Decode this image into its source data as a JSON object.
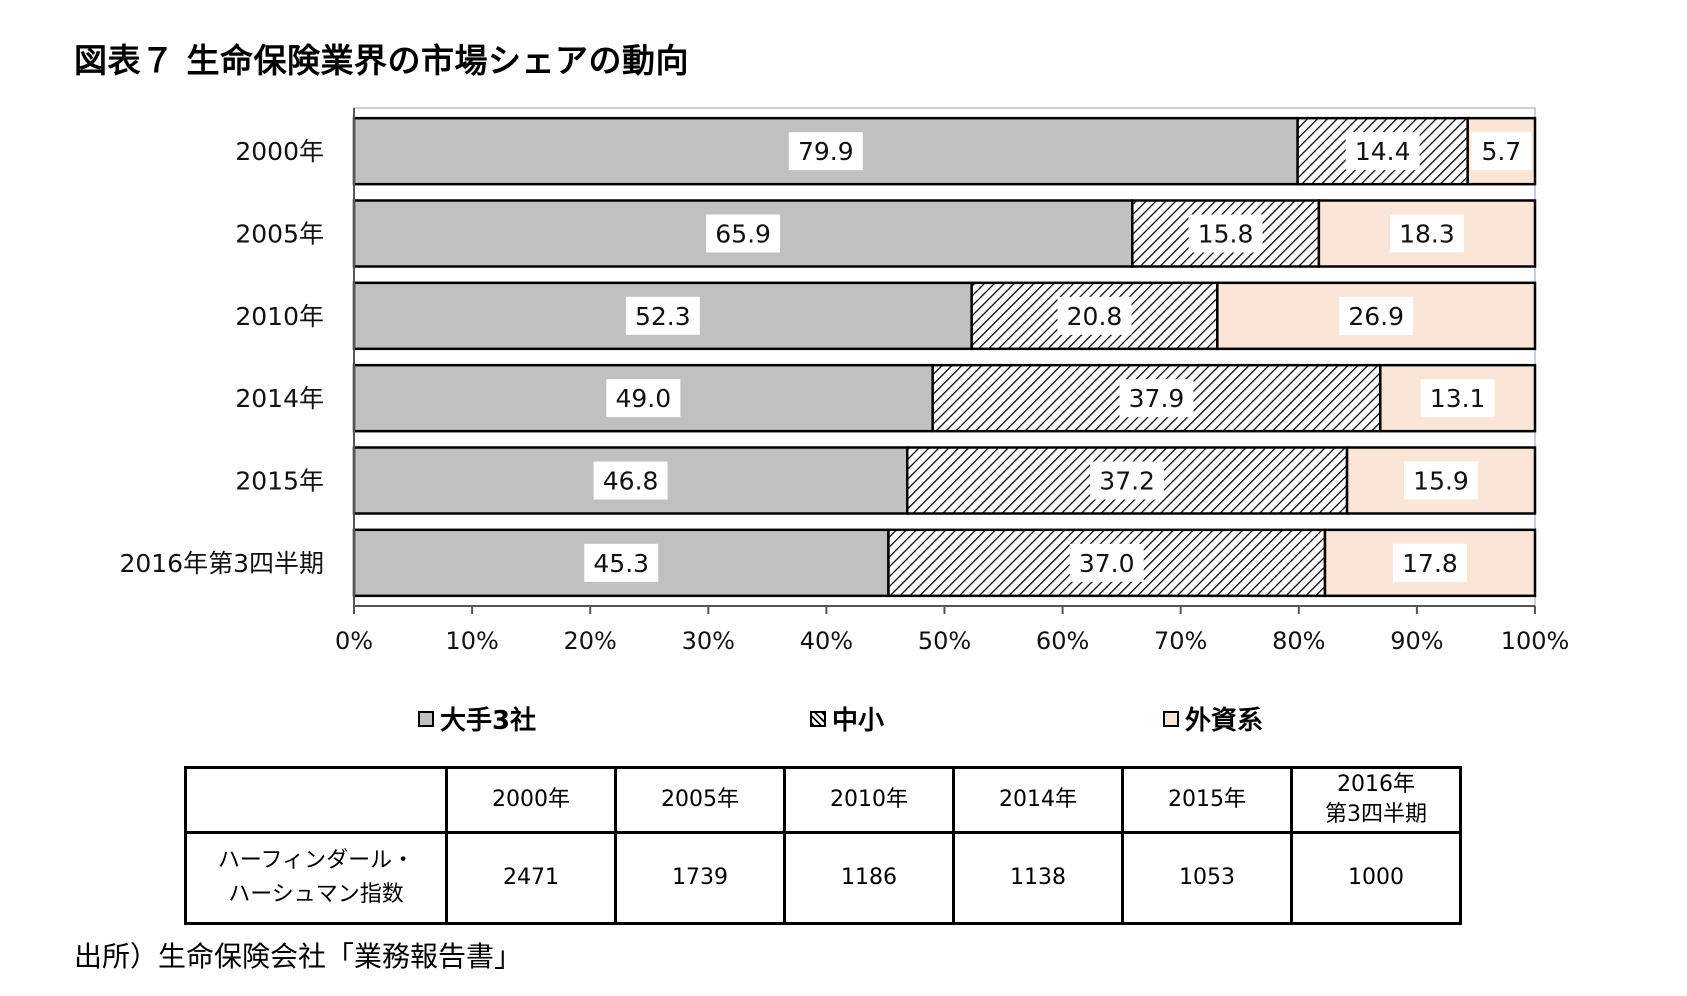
{
  "title": "図表７ 生命保険業界の市場シェアの動向",
  "chart_data": {
    "type": "bar",
    "orientation": "horizontal",
    "stacked": "percent",
    "categories": [
      "2000年",
      "2005年",
      "2010年",
      "2014年",
      "2015年",
      "2016年第3四半期"
    ],
    "series": [
      {
        "name": "大手3社",
        "values": [
          79.9,
          65.9,
          52.3,
          49.0,
          46.8,
          45.3
        ],
        "value_labels": [
          "79.9",
          "65.9",
          "52.3",
          "49.0",
          "46.8",
          "45.3"
        ],
        "color": "#c0c0c0",
        "pattern": "solid"
      },
      {
        "name": "中小",
        "values": [
          14.4,
          15.8,
          20.8,
          37.9,
          37.2,
          37.0
        ],
        "value_labels": [
          "14.4",
          "15.8",
          "20.8",
          "37.9",
          "37.2",
          "37.0"
        ],
        "color": "#ffffff",
        "pattern": "diagonal-hatch"
      },
      {
        "name": "外資系",
        "values": [
          5.7,
          18.3,
          26.9,
          13.1,
          15.9,
          17.8
        ],
        "value_labels": [
          "5.7",
          "18.3",
          "26.9",
          "13.1",
          "15.9",
          "17.8"
        ],
        "color": "#fbe5d6",
        "pattern": "solid"
      }
    ],
    "xlim": [
      0,
      100
    ],
    "xticks": [
      "0%",
      "10%",
      "20%",
      "30%",
      "40%",
      "50%",
      "60%",
      "70%",
      "80%",
      "90%",
      "100%"
    ],
    "legend_position": "bottom",
    "grid": false
  },
  "table": {
    "columns": [
      "2000年",
      "2005年",
      "2010年",
      "2014年",
      "2015年",
      [
        "2016年",
        "第3四半期"
      ]
    ],
    "row_label": [
      "ハーフィンダール・",
      "ハーシュマン指数"
    ],
    "values": [
      "2471",
      "1739",
      "1186",
      "1138",
      "1053",
      "1000"
    ]
  },
  "source": "出所）生命保険会社「業務報告書」"
}
